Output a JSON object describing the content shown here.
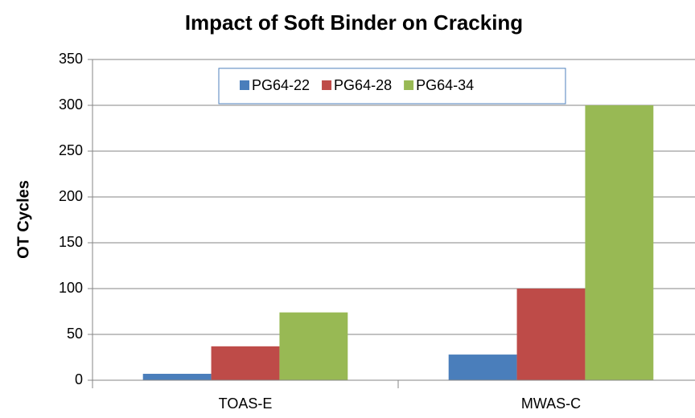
{
  "chart_data": {
    "type": "bar",
    "title": "Impact of Soft Binder on Cracking",
    "y_label": "OT Cycles",
    "categories": [
      "TOAS-E",
      "MWAS-C"
    ],
    "series": [
      {
        "name": "PG64-22",
        "color": "#4a7ebb",
        "values": [
          7,
          28
        ]
      },
      {
        "name": "PG64-28",
        "color": "#be4b48",
        "values": [
          37,
          100
        ]
      },
      {
        "name": "PG64-34",
        "color": "#98b954",
        "values": [
          74,
          300
        ]
      }
    ],
    "ylim": [
      0,
      350
    ],
    "yticks": [
      0,
      50,
      100,
      150,
      200,
      250,
      300,
      350
    ],
    "grid": true,
    "legend": "top"
  }
}
